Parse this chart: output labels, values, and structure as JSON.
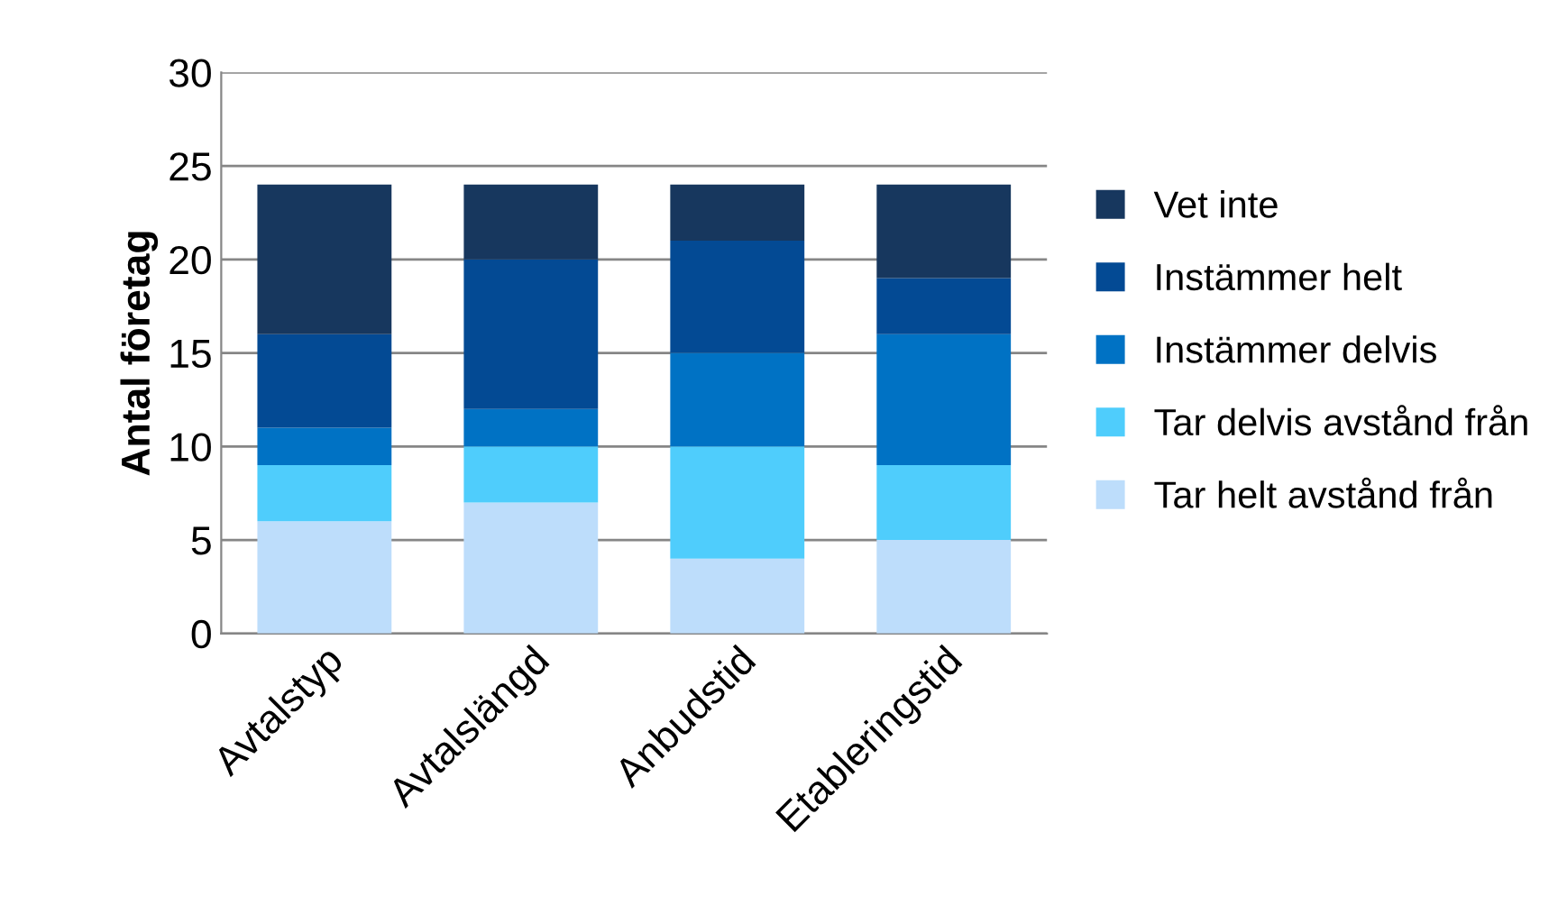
{
  "chart_data": {
    "type": "bar",
    "stacked": true,
    "ylabel": "Antal företag",
    "categories": [
      "Avtalstyp",
      "Avtalslängd",
      "Anbudstid",
      "Etableringstid"
    ],
    "series": [
      {
        "name": "Tar helt avstånd från",
        "color": "#bdddfb",
        "values": [
          6,
          7,
          4,
          5
        ]
      },
      {
        "name": "Tar delvis avstånd från",
        "color": "#4fcdfc",
        "values": [
          3,
          3,
          6,
          4
        ]
      },
      {
        "name": "Instämmer delvis",
        "color": "#0072c4",
        "values": [
          2,
          2,
          5,
          7
        ]
      },
      {
        "name": "Instämmer helt",
        "color": "#034a94",
        "values": [
          5,
          8,
          6,
          3
        ]
      },
      {
        "name": "Vet inte",
        "color": "#17375e",
        "values": [
          8,
          4,
          3,
          5
        ]
      }
    ],
    "ylim": [
      0,
      30
    ],
    "yticks": [
      0,
      5,
      10,
      15,
      20,
      25,
      30
    ],
    "grid": "y",
    "legend": "right"
  }
}
